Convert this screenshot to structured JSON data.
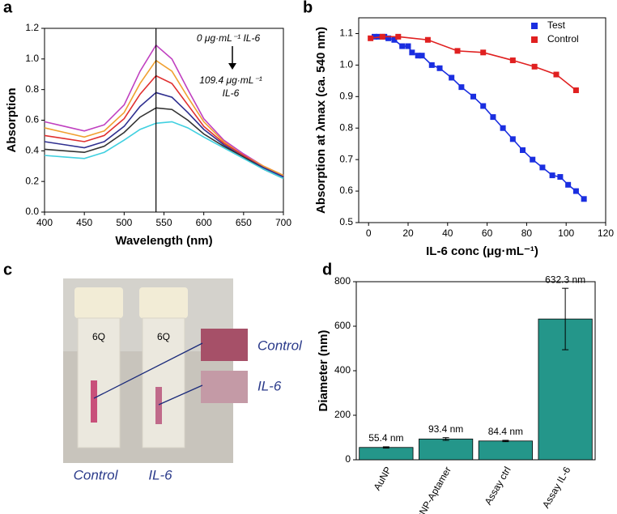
{
  "chart_data": [
    {
      "type": "line",
      "label": "a",
      "xlabel": "Wavelength (nm)",
      "ylabel": "Absorption",
      "x": [
        400,
        425,
        450,
        475,
        500,
        520,
        540,
        560,
        580,
        600,
        625,
        650,
        675,
        700
      ],
      "series": [
        {
          "color": "#c040c0",
          "values": [
            0.59,
            0.56,
            0.53,
            0.57,
            0.7,
            0.92,
            1.09,
            1.0,
            0.8,
            0.61,
            0.47,
            0.38,
            0.3,
            0.24
          ]
        },
        {
          "color": "#f0a030",
          "values": [
            0.55,
            0.52,
            0.49,
            0.53,
            0.65,
            0.84,
            0.99,
            0.92,
            0.75,
            0.59,
            0.46,
            0.37,
            0.3,
            0.24
          ]
        },
        {
          "color": "#e03030",
          "values": [
            0.5,
            0.48,
            0.46,
            0.5,
            0.61,
            0.77,
            0.89,
            0.84,
            0.7,
            0.56,
            0.45,
            0.37,
            0.29,
            0.23
          ]
        },
        {
          "color": "#303090",
          "values": [
            0.46,
            0.44,
            0.42,
            0.46,
            0.56,
            0.69,
            0.78,
            0.75,
            0.65,
            0.54,
            0.44,
            0.36,
            0.29,
            0.23
          ]
        },
        {
          "color": "#333333",
          "values": [
            0.41,
            0.4,
            0.39,
            0.43,
            0.52,
            0.62,
            0.68,
            0.67,
            0.6,
            0.51,
            0.43,
            0.36,
            0.28,
            0.22
          ]
        },
        {
          "color": "#40d0e0",
          "values": [
            0.37,
            0.36,
            0.35,
            0.39,
            0.47,
            0.54,
            0.58,
            0.59,
            0.55,
            0.49,
            0.42,
            0.35,
            0.28,
            0.22
          ]
        }
      ],
      "vline": 540,
      "annotations": [
        "0 μg·mL⁻¹ IL-6",
        "109.4 μg·mL⁻¹",
        "IL-6"
      ],
      "xlim": [
        400,
        700
      ],
      "xticks": [
        400,
        450,
        500,
        550,
        600,
        650,
        700
      ],
      "ylim": [
        0,
        1.2
      ],
      "yticks": [
        {
          "value": 0,
          "label": "0.0"
        },
        0.2,
        0.4,
        0.6,
        0.8,
        {
          "value": 1,
          "label": "1.0"
        },
        1.2
      ]
    },
    {
      "type": "scatter",
      "label": "b",
      "xlabel": "IL-6 conc (μg·mL⁻¹)",
      "ylabel": "Absorption at λmax (ca. 540 nm)",
      "series": [
        {
          "name": "Test",
          "color": "#1a2ee0",
          "x": [
            3,
            5,
            8,
            10,
            13,
            17,
            20,
            22,
            25,
            27,
            32,
            36,
            42,
            47,
            53,
            58,
            63,
            68,
            73,
            78,
            83,
            88,
            93,
            97,
            101,
            105,
            109
          ],
          "values": [
            1.09,
            1.09,
            1.09,
            1.085,
            1.08,
            1.06,
            1.06,
            1.04,
            1.03,
            1.03,
            1.0,
            0.99,
            0.96,
            0.93,
            0.9,
            0.87,
            0.835,
            0.8,
            0.765,
            0.73,
            0.7,
            0.675,
            0.65,
            0.645,
            0.62,
            0.6,
            0.575
          ]
        },
        {
          "name": "Control",
          "color": "#e02020",
          "x": [
            1,
            7,
            15,
            30,
            45,
            58,
            73,
            84,
            95,
            105
          ],
          "values": [
            1.085,
            1.09,
            1.09,
            1.08,
            1.045,
            1.04,
            1.015,
            0.995,
            0.97,
            0.92
          ]
        }
      ],
      "legend": "top-right",
      "xlim": [
        -5,
        120
      ],
      "xticks": [
        0,
        20,
        40,
        60,
        80,
        100,
        120
      ],
      "ylim": [
        0.5,
        1.15
      ],
      "yticks": [
        0.5,
        0.6,
        0.7,
        0.8,
        0.9,
        {
          "value": 1,
          "label": "1.0"
        },
        1.1
      ]
    },
    {
      "type": "bar",
      "label": "d",
      "ylabel": "Diameter (nm)",
      "categories": [
        "AuNP",
        "AuNP-Aptamer",
        "Assay ctrl",
        "Assay IL-6"
      ],
      "values": [
        55.4,
        93.4,
        84.4,
        632.3
      ],
      "value_labels": [
        "55.4 nm",
        "93.4 nm",
        "84.4 nm",
        "632.3 nm"
      ],
      "errors": [
        3,
        6,
        3,
        138
      ],
      "color": "#24968a",
      "ylim": [
        0,
        800
      ],
      "yticks": [
        0,
        200,
        400,
        600,
        800
      ]
    }
  ],
  "photo": {
    "label": "c",
    "cap_marks": [
      "6Q",
      "6Q"
    ],
    "swatch_labels": [
      "Control",
      "IL-6"
    ],
    "cuvette_labels": [
      "Control",
      "IL-6"
    ]
  }
}
